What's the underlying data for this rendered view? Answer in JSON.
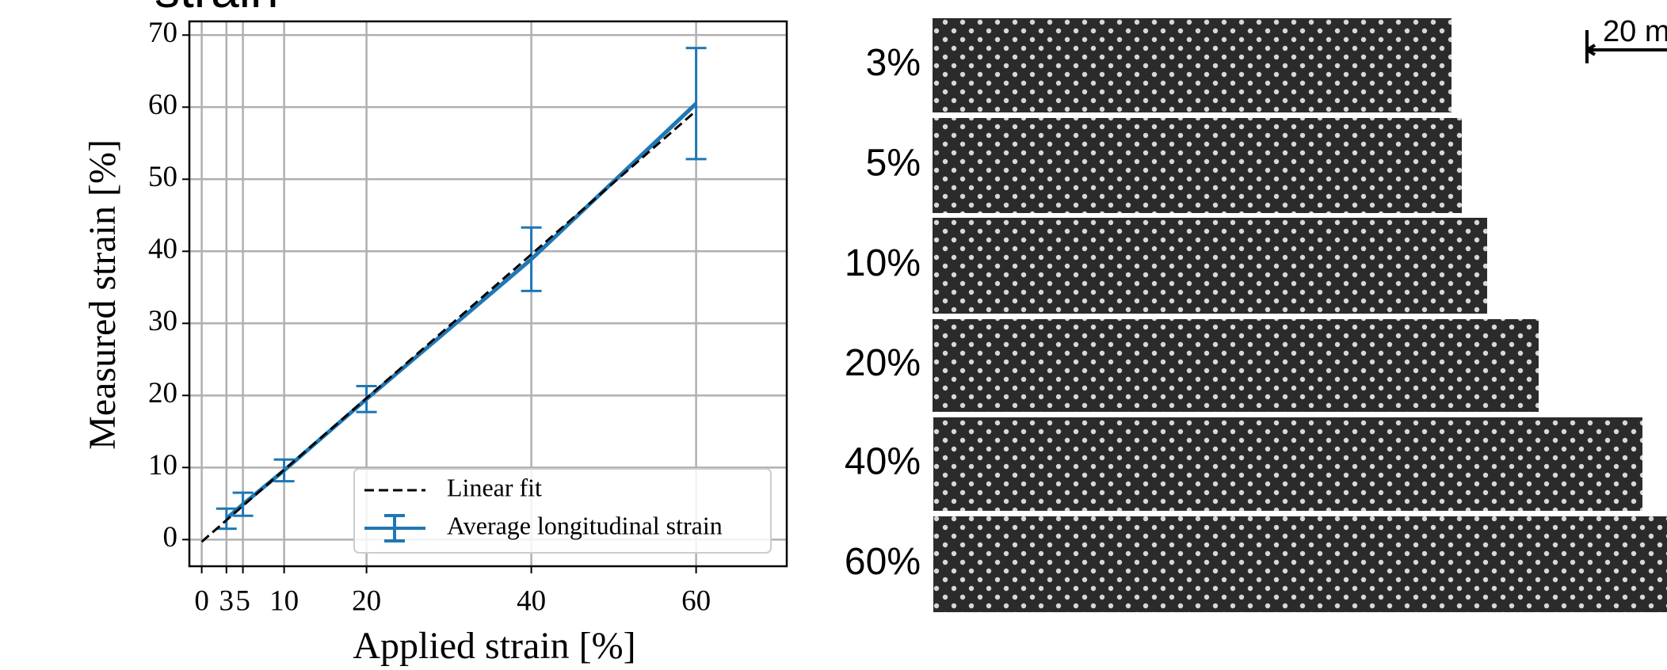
{
  "chart_data": {
    "type": "line",
    "title": "strain",
    "xlabel": "Applied strain [%]",
    "ylabel": "Measured strain [%]",
    "xlim": [
      -1.5,
      71
    ],
    "ylim": [
      -3.7,
      71.9
    ],
    "xticks": [
      0,
      3,
      5,
      10,
      20,
      40,
      60
    ],
    "yticks": [
      0,
      10,
      20,
      30,
      40,
      50,
      60,
      70
    ],
    "grid": true,
    "legend": "lower right",
    "series": [
      {
        "name": "Linear fit",
        "color": "#000000",
        "dashed": true,
        "x": [
          0,
          60
        ],
        "values": [
          -0.3,
          59.5
        ]
      },
      {
        "name": "Average longitudinal strain",
        "color": "#1f77b4",
        "dashed": false,
        "x": [
          3,
          5,
          10,
          20,
          40,
          60
        ],
        "values": [
          2.9,
          4.9,
          9.6,
          19.5,
          38.9,
          60.5
        ],
        "errors": [
          1.4,
          1.6,
          1.5,
          1.8,
          4.4,
          7.7
        ]
      }
    ]
  },
  "images": {
    "labels": [
      "3%",
      "5%",
      "10%",
      "20%",
      "40%",
      "60%"
    ],
    "scale_bar": "20 m"
  }
}
